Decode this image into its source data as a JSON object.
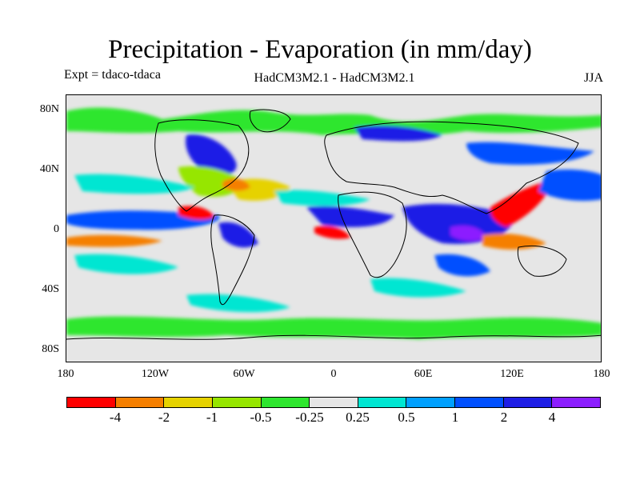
{
  "title": "Precipitation - Evaporation (in mm/day)",
  "experiment": "Expt = tdaco-tdaca",
  "models": "HadCM3M2.1 - HadCM3M2.1",
  "season": "JJA",
  "lat_labels": [
    "80N",
    "40N",
    "0",
    "40S",
    "80S"
  ],
  "lon_labels": [
    "180",
    "120W",
    "60W",
    "0",
    "60E",
    "120E",
    "180"
  ],
  "colorbar": {
    "colors": [
      "#ff0000",
      "#f57f00",
      "#e6d200",
      "#96e600",
      "#2ee62e",
      "#e6e6e6",
      "#00e6d2",
      "#00a0ff",
      "#0050ff",
      "#1e1ee6",
      "#8c1eff"
    ],
    "labels": [
      "-4",
      "-2",
      "-1",
      "-0.5",
      "-0.25",
      "0.25",
      "0.5",
      "1",
      "2",
      "4"
    ]
  },
  "map": {
    "background": "#e6e6e6",
    "coastline_color": "#000000"
  }
}
